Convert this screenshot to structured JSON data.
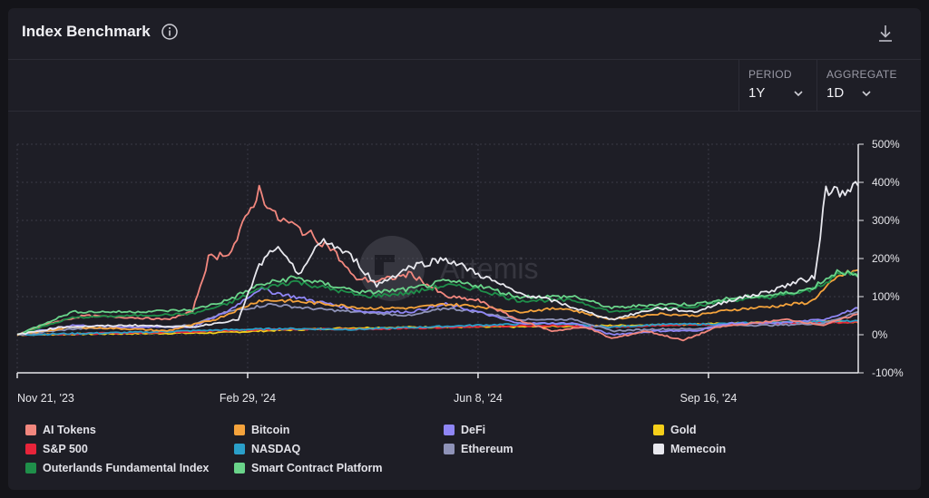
{
  "header": {
    "title": "Index Benchmark"
  },
  "controls": {
    "period": {
      "label": "PERIOD",
      "value": "1Y"
    },
    "aggregate": {
      "label": "AGGREGATE",
      "value": "1D"
    }
  },
  "watermark": "Artemis",
  "colors": {
    "AI Tokens": "#f2877e",
    "Bitcoin": "#f5a33c",
    "DeFi": "#8f86f5",
    "Gold": "#f5cf1a",
    "S&P 500": "#e8243a",
    "NASDAQ": "#2a9fc9",
    "Ethereum": "#8f93b8",
    "Memecoin": "#e8e8ee",
    "Outerlands Fundamental Index": "#1f8f4a",
    "Smart Contract Platform": "#6ad48a"
  },
  "chart_data": {
    "type": "line",
    "x_ticks": [
      "Nov 21, '23",
      "Feb 29, '24",
      "Jun 8, '24",
      "Sep 16, '24"
    ],
    "y_ticks": [
      "500%",
      "400%",
      "300%",
      "200%",
      "100%",
      "0%",
      "-100%"
    ],
    "ylim": [
      -100,
      500
    ],
    "x_range": [
      "2023-11-21",
      "2024-11-20"
    ],
    "legend_position": "bottom",
    "grid": true,
    "series": [
      {
        "name": "AI Tokens",
        "points": [
          [
            "2023-11-21",
            0
          ],
          [
            "2023-12-05",
            30
          ],
          [
            "2023-12-20",
            50
          ],
          [
            "2024-01-10",
            45
          ],
          [
            "2024-01-25",
            40
          ],
          [
            "2024-02-05",
            60
          ],
          [
            "2024-02-12",
            200
          ],
          [
            "2024-02-22",
            220
          ],
          [
            "2024-03-05",
            380
          ],
          [
            "2024-03-12",
            310
          ],
          [
            "2024-03-25",
            270
          ],
          [
            "2024-04-05",
            230
          ],
          [
            "2024-04-15",
            150
          ],
          [
            "2024-04-25",
            140
          ],
          [
            "2024-05-10",
            160
          ],
          [
            "2024-05-25",
            100
          ],
          [
            "2024-06-08",
            90
          ],
          [
            "2024-06-25",
            40
          ],
          [
            "2024-07-10",
            10
          ],
          [
            "2024-07-25",
            20
          ],
          [
            "2024-08-05",
            -10
          ],
          [
            "2024-08-20",
            10
          ],
          [
            "2024-09-05",
            -15
          ],
          [
            "2024-09-20",
            20
          ],
          [
            "2024-10-05",
            30
          ],
          [
            "2024-10-20",
            40
          ],
          [
            "2024-11-05",
            25
          ],
          [
            "2024-11-20",
            55
          ]
        ]
      },
      {
        "name": "Bitcoin",
        "points": [
          [
            "2023-11-21",
            0
          ],
          [
            "2023-12-15",
            20
          ],
          [
            "2024-01-10",
            15
          ],
          [
            "2024-01-25",
            10
          ],
          [
            "2024-02-15",
            40
          ],
          [
            "2024-03-05",
            90
          ],
          [
            "2024-03-15",
            90
          ],
          [
            "2024-04-05",
            80
          ],
          [
            "2024-04-20",
            70
          ],
          [
            "2024-05-10",
            70
          ],
          [
            "2024-05-25",
            80
          ],
          [
            "2024-06-08",
            75
          ],
          [
            "2024-06-25",
            60
          ],
          [
            "2024-07-15",
            70
          ],
          [
            "2024-08-05",
            40
          ],
          [
            "2024-08-25",
            55
          ],
          [
            "2024-09-10",
            50
          ],
          [
            "2024-09-25",
            65
          ],
          [
            "2024-10-15",
            75
          ],
          [
            "2024-10-30",
            85
          ],
          [
            "2024-11-12",
            155
          ],
          [
            "2024-11-20",
            170
          ]
        ]
      },
      {
        "name": "DeFi",
        "points": [
          [
            "2023-11-21",
            0
          ],
          [
            "2023-12-15",
            25
          ],
          [
            "2024-01-10",
            20
          ],
          [
            "2024-02-05",
            20
          ],
          [
            "2024-02-20",
            60
          ],
          [
            "2024-03-05",
            120
          ],
          [
            "2024-03-20",
            100
          ],
          [
            "2024-04-05",
            80
          ],
          [
            "2024-04-20",
            60
          ],
          [
            "2024-05-10",
            60
          ],
          [
            "2024-05-25",
            80
          ],
          [
            "2024-06-08",
            60
          ],
          [
            "2024-06-25",
            30
          ],
          [
            "2024-07-20",
            30
          ],
          [
            "2024-08-05",
            0
          ],
          [
            "2024-08-25",
            10
          ],
          [
            "2024-09-10",
            10
          ],
          [
            "2024-09-25",
            30
          ],
          [
            "2024-10-15",
            30
          ],
          [
            "2024-11-05",
            40
          ],
          [
            "2024-11-20",
            70
          ]
        ]
      },
      {
        "name": "Gold",
        "points": [
          [
            "2023-11-21",
            0
          ],
          [
            "2024-01-10",
            3
          ],
          [
            "2024-02-15",
            5
          ],
          [
            "2024-03-15",
            12
          ],
          [
            "2024-04-15",
            18
          ],
          [
            "2024-05-15",
            20
          ],
          [
            "2024-06-08",
            20
          ],
          [
            "2024-07-15",
            22
          ],
          [
            "2024-08-15",
            25
          ],
          [
            "2024-09-16",
            28
          ],
          [
            "2024-10-15",
            33
          ],
          [
            "2024-11-05",
            35
          ],
          [
            "2024-11-20",
            32
          ]
        ]
      },
      {
        "name": "S&P 500",
        "points": [
          [
            "2023-11-21",
            0
          ],
          [
            "2024-01-10",
            5
          ],
          [
            "2024-02-15",
            10
          ],
          [
            "2024-03-15",
            15
          ],
          [
            "2024-04-15",
            14
          ],
          [
            "2024-05-15",
            18
          ],
          [
            "2024-06-08",
            22
          ],
          [
            "2024-07-15",
            24
          ],
          [
            "2024-08-05",
            20
          ],
          [
            "2024-08-25",
            25
          ],
          [
            "2024-09-16",
            27
          ],
          [
            "2024-10-15",
            30
          ],
          [
            "2024-11-20",
            33
          ]
        ]
      },
      {
        "name": "NASDAQ",
        "points": [
          [
            "2023-11-21",
            0
          ],
          [
            "2024-01-10",
            6
          ],
          [
            "2024-02-15",
            12
          ],
          [
            "2024-03-15",
            16
          ],
          [
            "2024-04-15",
            14
          ],
          [
            "2024-05-15",
            20
          ],
          [
            "2024-06-08",
            25
          ],
          [
            "2024-07-10",
            30
          ],
          [
            "2024-08-05",
            20
          ],
          [
            "2024-08-25",
            27
          ],
          [
            "2024-09-16",
            28
          ],
          [
            "2024-10-15",
            33
          ],
          [
            "2024-11-20",
            36
          ]
        ]
      },
      {
        "name": "Ethereum",
        "points": [
          [
            "2023-11-21",
            0
          ],
          [
            "2023-12-15",
            15
          ],
          [
            "2024-01-10",
            20
          ],
          [
            "2024-02-05",
            25
          ],
          [
            "2024-02-20",
            60
          ],
          [
            "2024-03-10",
            80
          ],
          [
            "2024-03-25",
            70
          ],
          [
            "2024-04-15",
            60
          ],
          [
            "2024-05-10",
            50
          ],
          [
            "2024-05-25",
            70
          ],
          [
            "2024-06-08",
            60
          ],
          [
            "2024-06-25",
            40
          ],
          [
            "2024-07-20",
            40
          ],
          [
            "2024-08-05",
            10
          ],
          [
            "2024-08-25",
            15
          ],
          [
            "2024-09-10",
            15
          ],
          [
            "2024-09-25",
            25
          ],
          [
            "2024-10-15",
            25
          ],
          [
            "2024-11-05",
            30
          ],
          [
            "2024-11-20",
            60
          ]
        ]
      },
      {
        "name": "Memecoin",
        "points": [
          [
            "2023-11-21",
            0
          ],
          [
            "2023-12-10",
            20
          ],
          [
            "2024-01-10",
            25
          ],
          [
            "2024-02-05",
            20
          ],
          [
            "2024-02-25",
            40
          ],
          [
            "2024-03-05",
            180
          ],
          [
            "2024-03-12",
            230
          ],
          [
            "2024-03-22",
            160
          ],
          [
            "2024-04-02",
            250
          ],
          [
            "2024-04-15",
            200
          ],
          [
            "2024-04-25",
            130
          ],
          [
            "2024-05-10",
            180
          ],
          [
            "2024-05-25",
            200
          ],
          [
            "2024-06-08",
            160
          ],
          [
            "2024-06-25",
            110
          ],
          [
            "2024-07-10",
            90
          ],
          [
            "2024-07-25",
            60
          ],
          [
            "2024-08-05",
            40
          ],
          [
            "2024-08-25",
            70
          ],
          [
            "2024-09-10",
            60
          ],
          [
            "2024-09-25",
            90
          ],
          [
            "2024-10-10",
            110
          ],
          [
            "2024-10-25",
            140
          ],
          [
            "2024-11-01",
            150
          ],
          [
            "2024-11-06",
            380
          ],
          [
            "2024-11-12",
            380
          ],
          [
            "2024-11-20",
            390
          ]
        ]
      },
      {
        "name": "Outerlands Fundamental Index",
        "points": [
          [
            "2023-11-21",
            0
          ],
          [
            "2023-12-15",
            45
          ],
          [
            "2024-01-10",
            50
          ],
          [
            "2024-02-05",
            55
          ],
          [
            "2024-02-20",
            80
          ],
          [
            "2024-03-05",
            120
          ],
          [
            "2024-03-20",
            140
          ],
          [
            "2024-04-05",
            120
          ],
          [
            "2024-04-20",
            100
          ],
          [
            "2024-05-10",
            110
          ],
          [
            "2024-05-25",
            130
          ],
          [
            "2024-06-08",
            120
          ],
          [
            "2024-06-25",
            90
          ],
          [
            "2024-07-20",
            90
          ],
          [
            "2024-08-05",
            60
          ],
          [
            "2024-08-25",
            70
          ],
          [
            "2024-09-10",
            75
          ],
          [
            "2024-09-25",
            90
          ],
          [
            "2024-10-15",
            100
          ],
          [
            "2024-10-30",
            115
          ],
          [
            "2024-11-12",
            160
          ],
          [
            "2024-11-20",
            160
          ]
        ]
      },
      {
        "name": "Smart Contract Platform",
        "points": [
          [
            "2023-11-21",
            0
          ],
          [
            "2023-12-15",
            60
          ],
          [
            "2024-01-10",
            60
          ],
          [
            "2024-02-05",
            65
          ],
          [
            "2024-02-20",
            90
          ],
          [
            "2024-03-05",
            130
          ],
          [
            "2024-03-20",
            150
          ],
          [
            "2024-04-05",
            130
          ],
          [
            "2024-04-20",
            110
          ],
          [
            "2024-05-10",
            120
          ],
          [
            "2024-05-25",
            140
          ],
          [
            "2024-06-08",
            130
          ],
          [
            "2024-06-25",
            100
          ],
          [
            "2024-07-20",
            100
          ],
          [
            "2024-08-05",
            70
          ],
          [
            "2024-08-25",
            80
          ],
          [
            "2024-09-10",
            80
          ],
          [
            "2024-09-25",
            95
          ],
          [
            "2024-10-15",
            105
          ],
          [
            "2024-10-30",
            120
          ],
          [
            "2024-11-12",
            170
          ],
          [
            "2024-11-20",
            150
          ]
        ]
      }
    ]
  }
}
